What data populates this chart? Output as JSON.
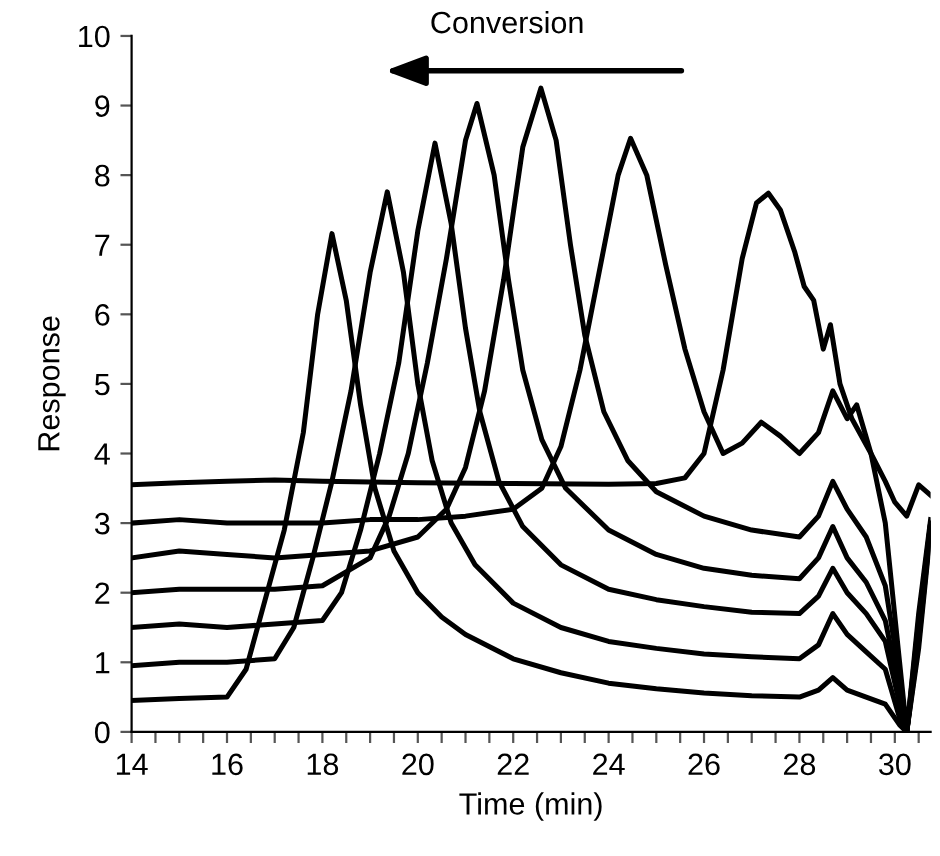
{
  "chart_data": {
    "type": "line",
    "xlabel": "Time (min)",
    "ylabel": "Response",
    "annotations": [
      "Conversion"
    ],
    "xlim": [
      14,
      30.75
    ],
    "ylim": [
      0,
      10
    ],
    "xticks": [
      14,
      {
        "value": 14.5,
        "label": null
      },
      {
        "value": 15,
        "label": null
      },
      {
        "value": 15.5,
        "label": null
      },
      16,
      {
        "value": 16.5,
        "label": null
      },
      {
        "value": 17,
        "label": null
      },
      {
        "value": 17.5,
        "label": null
      },
      18,
      {
        "value": 18.5,
        "label": null
      },
      {
        "value": 19,
        "label": null
      },
      {
        "value": 19.5,
        "label": null
      },
      20,
      {
        "value": 20.5,
        "label": null
      },
      {
        "value": 21,
        "label": null
      },
      {
        "value": 21.5,
        "label": null
      },
      22,
      {
        "value": 22.5,
        "label": null
      },
      {
        "value": 23,
        "label": null
      },
      {
        "value": 23.5,
        "label": null
      },
      24,
      {
        "value": 24.5,
        "label": null
      },
      {
        "value": 25,
        "label": null
      },
      {
        "value": 25.5,
        "label": null
      },
      26,
      {
        "value": 26.5,
        "label": null
      },
      {
        "value": 27,
        "label": null
      },
      {
        "value": 27.5,
        "label": null
      },
      28,
      {
        "value": 28.5,
        "label": null
      },
      {
        "value": 29,
        "label": null
      },
      {
        "value": 29.5,
        "label": null
      },
      30,
      {
        "value": 30.5,
        "label": null
      }
    ],
    "yticks": [
      0,
      1,
      2,
      3,
      4,
      5,
      6,
      7,
      8,
      9,
      10
    ],
    "grid": false,
    "legend": false,
    "marker": "none",
    "line_style": "solid",
    "series": [
      {
        "color": "#000000",
        "x": [
          14,
          15,
          16,
          16.4,
          16.8,
          17.2,
          17.6,
          17.9,
          18.2,
          18.5,
          18.8,
          19.1,
          19.5,
          20,
          20.5,
          21,
          22,
          23,
          24,
          25,
          26,
          27,
          28,
          28.4,
          28.7,
          29,
          29.4,
          29.8,
          30.1,
          30.25,
          30.5,
          30.75
        ],
        "values": [
          0.45,
          0.48,
          0.5,
          0.9,
          1.9,
          2.9,
          4.3,
          6.0,
          7.16,
          6.2,
          4.7,
          3.5,
          2.6,
          2.0,
          1.65,
          1.4,
          1.05,
          0.85,
          0.7,
          0.62,
          0.56,
          0.52,
          0.5,
          0.6,
          0.78,
          0.6,
          0.5,
          0.4,
          0.1,
          0.0,
          1.2,
          2.9
        ]
      },
      {
        "color": "#000000",
        "x": [
          14,
          15,
          16,
          17,
          17.4,
          17.8,
          18.2,
          18.6,
          19.0,
          19.36,
          19.7,
          20.0,
          20.3,
          20.7,
          21.2,
          22,
          23,
          24,
          25,
          26,
          27,
          28,
          28.4,
          28.7,
          29,
          29.4,
          29.8,
          30.1,
          30.25,
          30.5,
          30.75
        ],
        "values": [
          0.95,
          1.0,
          1.0,
          1.05,
          1.5,
          2.5,
          3.6,
          4.9,
          6.6,
          7.76,
          6.6,
          5.0,
          3.9,
          3.0,
          2.4,
          1.85,
          1.5,
          1.3,
          1.2,
          1.12,
          1.08,
          1.05,
          1.25,
          1.7,
          1.4,
          1.15,
          0.9,
          0.2,
          0.0,
          1.3,
          2.95
        ]
      },
      {
        "color": "#000000",
        "x": [
          14,
          15,
          16,
          17,
          18,
          18.4,
          18.8,
          19.2,
          19.6,
          20.0,
          20.36,
          20.7,
          21.0,
          21.3,
          21.7,
          22.2,
          23,
          24,
          25,
          26,
          27,
          28,
          28.4,
          28.7,
          29,
          29.4,
          29.8,
          30.1,
          30.25,
          30.5,
          30.75
        ],
        "values": [
          1.5,
          1.55,
          1.5,
          1.55,
          1.6,
          2.0,
          2.9,
          4.0,
          5.3,
          7.2,
          8.46,
          7.3,
          5.8,
          4.6,
          3.6,
          2.95,
          2.4,
          2.05,
          1.9,
          1.8,
          1.72,
          1.7,
          1.95,
          2.35,
          2.0,
          1.7,
          1.3,
          0.4,
          0.0,
          1.4,
          3.0
        ]
      },
      {
        "color": "#000000",
        "x": [
          14,
          15,
          16,
          17,
          18,
          19,
          19.4,
          19.8,
          20.2,
          20.6,
          21.0,
          21.24,
          21.6,
          21.9,
          22.2,
          22.6,
          23.1,
          24,
          25,
          26,
          27,
          28,
          28.4,
          28.7,
          29,
          29.4,
          29.8,
          30.1,
          30.25,
          30.5,
          30.75
        ],
        "values": [
          2.0,
          2.05,
          2.05,
          2.05,
          2.1,
          2.5,
          3.1,
          4.0,
          5.3,
          6.8,
          8.5,
          9.03,
          8.0,
          6.5,
          5.2,
          4.2,
          3.5,
          2.9,
          2.55,
          2.35,
          2.25,
          2.2,
          2.5,
          2.95,
          2.5,
          2.15,
          1.6,
          0.6,
          0.0,
          1.5,
          3.0
        ]
      },
      {
        "color": "#000000",
        "x": [
          14,
          15,
          16,
          17,
          18,
          19,
          20,
          20.6,
          21.0,
          21.4,
          21.8,
          22.2,
          22.58,
          22.9,
          23.2,
          23.5,
          23.9,
          24.4,
          25,
          26,
          27,
          28,
          28.4,
          28.7,
          29,
          29.4,
          29.8,
          30.1,
          30.25,
          30.5,
          30.75
        ],
        "values": [
          2.5,
          2.6,
          2.55,
          2.5,
          2.55,
          2.6,
          2.8,
          3.2,
          3.8,
          4.9,
          6.5,
          8.4,
          9.25,
          8.5,
          7.0,
          5.7,
          4.6,
          3.9,
          3.45,
          3.1,
          2.9,
          2.8,
          3.1,
          3.6,
          3.2,
          2.8,
          2.1,
          0.8,
          0.0,
          1.6,
          3.0
        ]
      },
      {
        "color": "#000000",
        "x": [
          14,
          15,
          16,
          17,
          18,
          19,
          20,
          21,
          22,
          22.6,
          23.0,
          23.4,
          23.8,
          24.2,
          24.46,
          24.8,
          25.2,
          25.6,
          26.0,
          26.4,
          26.8,
          27.2,
          27.6,
          28.0,
          28.4,
          28.7,
          29.0,
          29.2,
          29.5,
          29.8,
          30.1,
          30.25,
          30.5,
          30.75
        ],
        "values": [
          3.0,
          3.05,
          3.0,
          3.0,
          3.0,
          3.05,
          3.05,
          3.1,
          3.2,
          3.5,
          4.1,
          5.2,
          6.6,
          8.0,
          8.53,
          8.0,
          6.7,
          5.5,
          4.6,
          4.0,
          4.15,
          4.45,
          4.25,
          4.0,
          4.3,
          4.9,
          4.5,
          4.7,
          4.0,
          3.0,
          1.0,
          0.0,
          1.7,
          3.05
        ]
      },
      {
        "color": "#000000",
        "x": [
          14,
          15,
          16,
          17,
          18,
          20,
          22,
          24,
          25,
          25.6,
          26.0,
          26.4,
          26.8,
          27.1,
          27.35,
          27.6,
          27.9,
          28.1,
          28.3,
          28.5,
          28.65,
          28.85,
          29.1,
          29.5,
          29.8,
          30.0,
          30.25,
          30.5,
          30.75
        ],
        "values": [
          3.55,
          3.58,
          3.6,
          3.62,
          3.6,
          3.58,
          3.57,
          3.56,
          3.57,
          3.65,
          4.0,
          5.2,
          6.8,
          7.6,
          7.74,
          7.5,
          6.9,
          6.4,
          6.2,
          5.5,
          5.85,
          5.0,
          4.5,
          4.0,
          3.6,
          3.3,
          3.1,
          3.55,
          3.4
        ]
      }
    ]
  }
}
